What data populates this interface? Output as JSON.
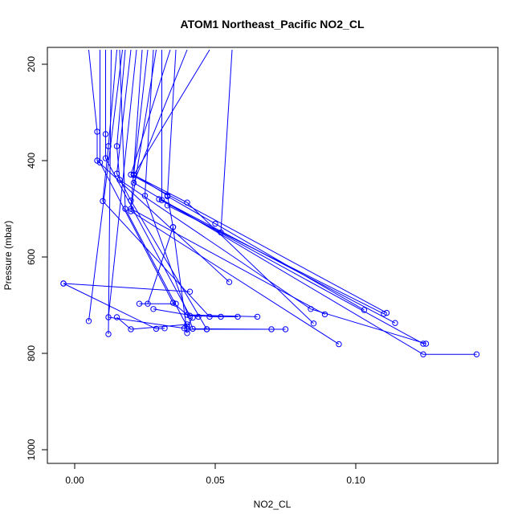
{
  "chart_data": {
    "type": "line",
    "title": "ATOM1 Northeast_Pacific NO2_CL",
    "xlabel": "NO2_CL",
    "ylabel": "Pressure (mbar)",
    "xlim": [
      -0.01,
      0.15
    ],
    "ylim": [
      1000,
      170
    ],
    "y_reversed": true,
    "x_ticks": [
      0.0,
      0.05,
      0.1
    ],
    "x_tick_labels": [
      "0.00",
      "0.05",
      "0.10"
    ],
    "y_ticks": [
      200,
      400,
      600,
      800,
      1000
    ],
    "y_tick_labels": [
      "200",
      "400",
      "600",
      "800",
      "1000"
    ],
    "grid": false,
    "legend": "none",
    "line_color": "#0000ff",
    "marker": "open-circle",
    "series": [
      {
        "values": [
          [
            0.005,
            170
          ],
          [
            0.008,
            340
          ],
          [
            0.008,
            400
          ],
          [
            0.055,
            652
          ]
        ]
      },
      {
        "values": [
          [
            0.009,
            170
          ],
          [
            0.009,
            404
          ],
          [
            0.035,
            695
          ],
          [
            0.04,
            720
          ],
          [
            0.065,
            724
          ]
        ]
      },
      {
        "values": [
          [
            0.011,
            170
          ],
          [
            0.011,
            345
          ],
          [
            0.011,
            395
          ],
          [
            0.041,
            722
          ],
          [
            0.052,
            724
          ]
        ]
      },
      {
        "values": [
          [
            0.015,
            170
          ],
          [
            0.012,
            370
          ],
          [
            0.01,
            484
          ],
          [
            0.048,
            724
          ],
          [
            0.058,
            724
          ]
        ]
      },
      {
        "values": [
          [
            0.018,
            170
          ],
          [
            0.015,
            370
          ],
          [
            0.016,
            440
          ],
          [
            0.084,
            708
          ],
          [
            0.125,
            780
          ]
        ]
      },
      {
        "values": [
          [
            0.02,
            170
          ],
          [
            0.015,
            427
          ],
          [
            0.02,
            483
          ],
          [
            0.047,
            750
          ],
          [
            0.075,
            750
          ]
        ]
      },
      {
        "values": [
          [
            0.024,
            170
          ],
          [
            0.02,
            505
          ],
          [
            0.094,
            781
          ]
        ]
      },
      {
        "values": [
          [
            0.026,
            170
          ],
          [
            0.021,
            429
          ],
          [
            0.033,
            472
          ],
          [
            0.035,
            538
          ],
          [
            0.04,
            758
          ]
        ]
      },
      {
        "values": [
          [
            0.028,
            170
          ],
          [
            0.025,
            473
          ],
          [
            0.042,
            749
          ],
          [
            0.07,
            750
          ]
        ]
      },
      {
        "values": [
          [
            0.031,
            170
          ],
          [
            0.031,
            482
          ],
          [
            0.114,
            737
          ]
        ]
      },
      {
        "values": [
          [
            0.034,
            170
          ],
          [
            0.02,
            429
          ],
          [
            0.111,
            716
          ]
        ]
      },
      {
        "values": [
          [
            0.04,
            170
          ],
          [
            0.021,
            446
          ],
          [
            0.124,
            802
          ],
          [
            0.143,
            802
          ]
        ]
      },
      {
        "values": [
          [
            0.048,
            170
          ],
          [
            0.021,
            430
          ],
          [
            0.04,
            487
          ],
          [
            0.085,
            738
          ]
        ]
      },
      {
        "values": [
          [
            0.056,
            170
          ],
          [
            0.052,
            549
          ]
        ]
      },
      {
        "values": [
          [
            0.036,
            170
          ],
          [
            0.033,
            474
          ],
          [
            0.05,
            531
          ],
          [
            0.103,
            710
          ]
        ]
      },
      {
        "values": [
          [
            0.013,
            170
          ],
          [
            0.012,
            760
          ]
        ]
      },
      {
        "values": [
          [
            0.022,
            170
          ],
          [
            0.012,
            725
          ],
          [
            0.039,
            748
          ]
        ]
      },
      {
        "values": [
          [
            0.017,
            170
          ],
          [
            0.005,
            733
          ]
        ]
      },
      {
        "values": [
          [
            0.029,
            170
          ],
          [
            0.02,
            500
          ],
          [
            0.089,
            719
          ]
        ]
      },
      {
        "values": [
          [
            0.016,
            170
          ],
          [
            0.018,
            500
          ],
          [
            0.04,
            744
          ],
          [
            0.042,
            726
          ]
        ]
      },
      {
        "values": [
          [
            -0.004,
            655
          ],
          [
            0.041,
            672
          ]
        ]
      },
      {
        "values": [
          [
            -0.004,
            655
          ],
          [
            0.029,
            749
          ],
          [
            0.032,
            748
          ]
        ]
      },
      {
        "values": [
          [
            0.023,
            697
          ],
          [
            0.036,
            697
          ]
        ]
      },
      {
        "values": [
          [
            0.015,
            725
          ],
          [
            0.02,
            750
          ],
          [
            0.04,
            740
          ]
        ]
      },
      {
        "values": [
          [
            0.033,
            493
          ],
          [
            0.11,
            718
          ]
        ]
      },
      {
        "values": [
          [
            0.03,
            480
          ],
          [
            0.124,
            780
          ]
        ]
      },
      {
        "values": [
          [
            0.04,
            750
          ],
          [
            0.047,
            750
          ]
        ]
      },
      {
        "values": [
          [
            0.026,
            697
          ],
          [
            0.035,
            538
          ]
        ]
      },
      {
        "values": [
          [
            0.028,
            708
          ],
          [
            0.044,
            724
          ]
        ]
      }
    ]
  }
}
